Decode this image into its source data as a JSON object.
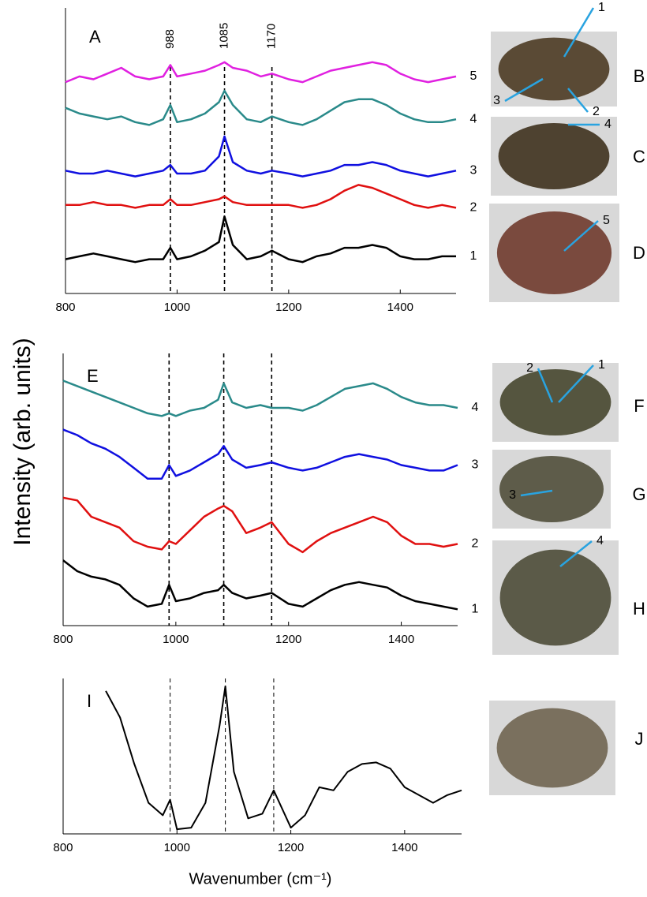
{
  "y_axis_label": "Intensity (arb. units)",
  "x_axis_label": "Wavenumber (cm⁻¹)",
  "chart_data": [
    {
      "type": "line",
      "panel_label": "A",
      "x": [
        800,
        825,
        850,
        875,
        900,
        925,
        950,
        975,
        988,
        1000,
        1025,
        1050,
        1075,
        1085,
        1100,
        1125,
        1150,
        1170,
        1200,
        1225,
        1250,
        1275,
        1300,
        1325,
        1350,
        1375,
        1400,
        1425,
        1450,
        1475,
        1500
      ],
      "xlim": [
        800,
        1500
      ],
      "xticks": [
        800,
        1000,
        1200,
        1400
      ],
      "ylim": [
        0,
        100
      ],
      "reference_lines": [
        {
          "value": 988,
          "label": "988"
        },
        {
          "value": 1085,
          "label": "1085"
        },
        {
          "value": 1170,
          "label": "1170"
        }
      ],
      "series": [
        {
          "name": "1",
          "color": "#000000",
          "values": [
            12,
            13,
            14,
            13,
            12,
            11,
            12,
            12,
            16,
            12,
            13,
            15,
            18,
            27,
            17,
            12,
            13,
            15,
            12,
            11,
            13,
            14,
            16,
            16,
            17,
            16,
            13,
            12,
            12,
            13,
            13
          ]
        },
        {
          "name": "2",
          "color": "#e01010",
          "values": [
            31,
            31,
            32,
            31,
            31,
            30,
            31,
            31,
            33,
            31,
            31,
            32,
            33,
            34,
            32,
            31,
            31,
            31,
            31,
            30,
            31,
            33,
            36,
            38,
            37,
            35,
            33,
            31,
            30,
            31,
            30
          ]
        },
        {
          "name": "3",
          "color": "#1010e0",
          "values": [
            43,
            42,
            42,
            43,
            42,
            41,
            42,
            43,
            45,
            42,
            42,
            43,
            48,
            55,
            46,
            43,
            42,
            43,
            42,
            41,
            42,
            43,
            45,
            45,
            46,
            45,
            43,
            42,
            41,
            42,
            43
          ]
        },
        {
          "name": "4",
          "color": "#2a8a8a",
          "values": [
            65,
            63,
            62,
            61,
            62,
            60,
            59,
            61,
            66,
            60,
            61,
            63,
            67,
            71,
            66,
            61,
            60,
            62,
            60,
            59,
            61,
            64,
            67,
            68,
            68,
            66,
            63,
            61,
            60,
            60,
            61
          ]
        },
        {
          "name": "5",
          "color": "#e020e0",
          "values": [
            74,
            76,
            75,
            77,
            79,
            76,
            75,
            76,
            80,
            76,
            77,
            78,
            80,
            81,
            79,
            78,
            76,
            77,
            75,
            74,
            76,
            78,
            79,
            80,
            81,
            80,
            77,
            75,
            74,
            75,
            76
          ]
        }
      ]
    },
    {
      "type": "line",
      "panel_label": "E",
      "x": [
        800,
        825,
        850,
        875,
        900,
        925,
        950,
        975,
        988,
        1000,
        1025,
        1050,
        1075,
        1085,
        1100,
        1125,
        1150,
        1170,
        1200,
        1225,
        1250,
        1275,
        1300,
        1325,
        1350,
        1375,
        1400,
        1425,
        1450,
        1475,
        1500
      ],
      "xlim": [
        800,
        1500
      ],
      "xticks": [
        800,
        1000,
        1200,
        1400
      ],
      "ylim": [
        0,
        100
      ],
      "reference_lines": [
        988,
        1085,
        1170
      ],
      "series": [
        {
          "name": "1",
          "color": "#000000",
          "values": [
            24,
            20,
            18,
            17,
            15,
            10,
            7,
            8,
            15,
            9,
            10,
            12,
            13,
            15,
            12,
            10,
            11,
            12,
            8,
            7,
            10,
            13,
            15,
            16,
            15,
            14,
            11,
            9,
            8,
            7,
            6
          ]
        },
        {
          "name": "2",
          "color": "#e01010",
          "values": [
            47,
            46,
            40,
            38,
            36,
            31,
            29,
            28,
            31,
            30,
            35,
            40,
            43,
            44,
            42,
            34,
            36,
            38,
            30,
            27,
            31,
            34,
            36,
            38,
            40,
            38,
            33,
            30,
            30,
            29,
            30
          ]
        },
        {
          "name": "3",
          "color": "#1010e0",
          "values": [
            72,
            70,
            67,
            65,
            62,
            58,
            54,
            54,
            59,
            55,
            57,
            60,
            63,
            66,
            61,
            58,
            59,
            60,
            58,
            57,
            58,
            60,
            62,
            63,
            62,
            61,
            59,
            58,
            57,
            57,
            59
          ]
        },
        {
          "name": "4",
          "color": "#2a8a8a",
          "values": [
            90,
            88,
            86,
            84,
            82,
            80,
            78,
            77,
            78,
            77,
            79,
            80,
            83,
            89,
            82,
            80,
            81,
            80,
            80,
            79,
            81,
            84,
            87,
            88,
            89,
            87,
            84,
            82,
            81,
            81,
            80
          ]
        }
      ]
    },
    {
      "type": "line",
      "panel_label": "I",
      "x": [
        800,
        825,
        850,
        875,
        900,
        925,
        950,
        975,
        988,
        1000,
        1025,
        1050,
        1075,
        1085,
        1100,
        1125,
        1150,
        1170,
        1200,
        1225,
        1250,
        1275,
        1300,
        1325,
        1350,
        1375,
        1400,
        1425,
        1450,
        1475,
        1500
      ],
      "xlim": [
        800,
        1500
      ],
      "xticks": [
        800,
        1000,
        1200,
        1400
      ],
      "ylim": [
        0,
        100
      ],
      "reference_lines": [
        988,
        1085,
        1170
      ],
      "series": [
        {
          "color": "#000000",
          "values": [
            null,
            null,
            null,
            92,
            75,
            45,
            20,
            12,
            22,
            3,
            4,
            20,
            70,
            95,
            40,
            10,
            13,
            28,
            4,
            12,
            30,
            28,
            40,
            45,
            46,
            42,
            30,
            25,
            20,
            25,
            28
          ]
        }
      ]
    }
  ],
  "photos": [
    {
      "letter": "B",
      "markers": [
        "1",
        "2",
        "3"
      ]
    },
    {
      "letter": "C",
      "markers": [
        "4"
      ]
    },
    {
      "letter": "D",
      "markers": [
        "5"
      ]
    },
    {
      "letter": "F",
      "markers": [
        "1",
        "2"
      ]
    },
    {
      "letter": "G",
      "markers": [
        "3"
      ]
    },
    {
      "letter": "H",
      "markers": [
        "4"
      ]
    },
    {
      "letter": "J",
      "markers": []
    }
  ]
}
